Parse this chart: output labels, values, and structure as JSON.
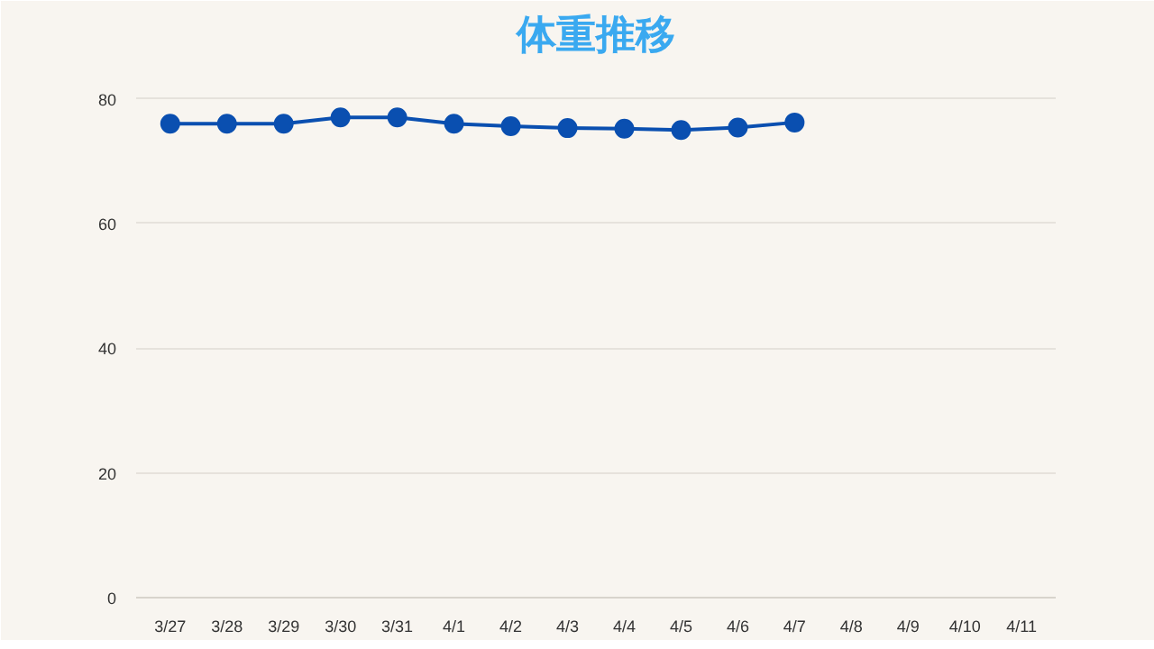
{
  "chart_data": {
    "type": "line",
    "title": "体重推移",
    "categories": [
      "3/27",
      "3/28",
      "3/29",
      "3/30",
      "3/31",
      "4/1",
      "4/2",
      "4/3",
      "4/4",
      "4/5",
      "4/6",
      "4/7",
      "4/8",
      "4/9",
      "4/10",
      "4/11"
    ],
    "series": [
      {
        "color": "#0a4fb0",
        "values": [
          76,
          76,
          76,
          77,
          77,
          76,
          75.6,
          75.3,
          75.2,
          75,
          75.4,
          76.2,
          null,
          null,
          null,
          null
        ]
      }
    ],
    "ylim": [
      0,
      85
    ],
    "yticks": [
      0,
      20,
      40,
      60,
      80
    ],
    "grid": "y",
    "marker": "circle",
    "line_style": "solid"
  }
}
